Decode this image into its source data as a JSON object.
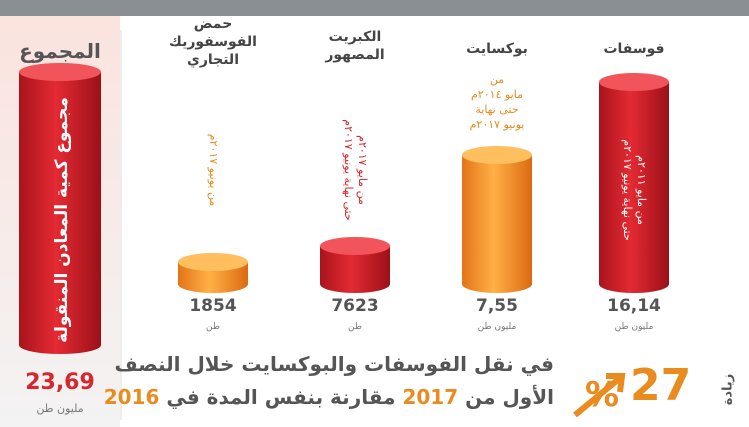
{
  "total": {
    "title": "المجموع",
    "label": "مجموع كمية المعادن المنقولة",
    "value": "23,69",
    "unit": "مليون طن"
  },
  "columns": [
    {
      "title": [
        "فوسفات"
      ],
      "period": [
        "من مايو ٢٠١١م",
        "حتى نهاية يونيو ٢٠١٧م"
      ],
      "value": "16,14",
      "unit": "مليون طن"
    },
    {
      "title": [
        "بوكسايت"
      ],
      "period": [
        "من",
        "مايو ٢٠١٤م",
        "حتى نهاية",
        "يونيو ٢٠١٧م"
      ],
      "value": "7,55",
      "unit": "مليون طن"
    },
    {
      "title": [
        "الكبريت",
        "المصهور"
      ],
      "period": [
        "من مايو ٢٠١٧م",
        "حتى نهاية يونيو ٢٠١٧م"
      ],
      "value": "7623",
      "unit": "طن"
    },
    {
      "title": [
        "حمض",
        "الفوسفوريك",
        "التجاري"
      ],
      "period": [
        "من يونيو ٢٠١٧م"
      ],
      "value": "1854",
      "unit": "طن"
    }
  ],
  "headline": {
    "line1": "في نقل الفوسفات والبوكسايت خلال النصف",
    "line2_a": "الأول من",
    "year1": "2017",
    "line2_b": "مقارنة بنفس المدة في",
    "year2": "2016"
  },
  "badge": {
    "number": "27",
    "symbol": "%",
    "word": "زيادة"
  }
}
